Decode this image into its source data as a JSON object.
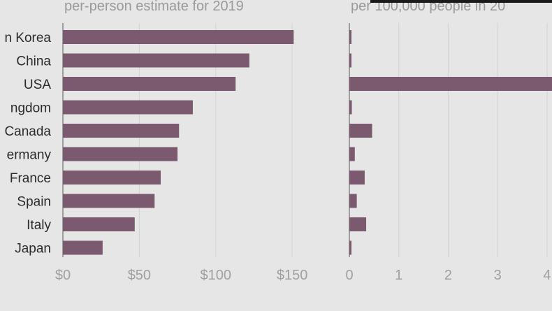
{
  "colors": {
    "background": "#e6e6e6",
    "bar": "#7b5a70",
    "grid": "#d2d2d2",
    "tick_text": "#a0a0a0",
    "label_text": "#2b2b2b"
  },
  "chart_data": [
    {
      "type": "bar",
      "orientation": "horizontal",
      "title": "per-person estimate for 2019",
      "categories": [
        "n Korea",
        "China",
        "USA",
        "ngdom",
        "Canada",
        "ermany",
        "France",
        "Spain",
        "Italy",
        "Japan"
      ],
      "values": [
        151,
        122,
        113,
        85,
        76,
        75,
        64,
        60,
        47,
        26
      ],
      "xlim": [
        0,
        160
      ],
      "ticks": [
        0,
        50,
        100,
        150
      ],
      "tick_labels": [
        "$0",
        "$50",
        "$100",
        "$150"
      ],
      "grid": true
    },
    {
      "type": "bar",
      "orientation": "horizontal",
      "title": "per 100,000 people in 20",
      "categories": [
        "n Korea",
        "China",
        "USA",
        "ngdom",
        "Canada",
        "ermany",
        "France",
        "Spain",
        "Italy",
        "Japan"
      ],
      "values": [
        0.04,
        0.03,
        4.2,
        0.05,
        0.46,
        0.11,
        0.31,
        0.15,
        0.34,
        0.03
      ],
      "xlim": [
        0,
        4.1
      ],
      "ticks": [
        0,
        1,
        2,
        3,
        4
      ],
      "tick_labels": [
        "0",
        "1",
        "2",
        "3",
        "4"
      ],
      "grid": true
    }
  ]
}
